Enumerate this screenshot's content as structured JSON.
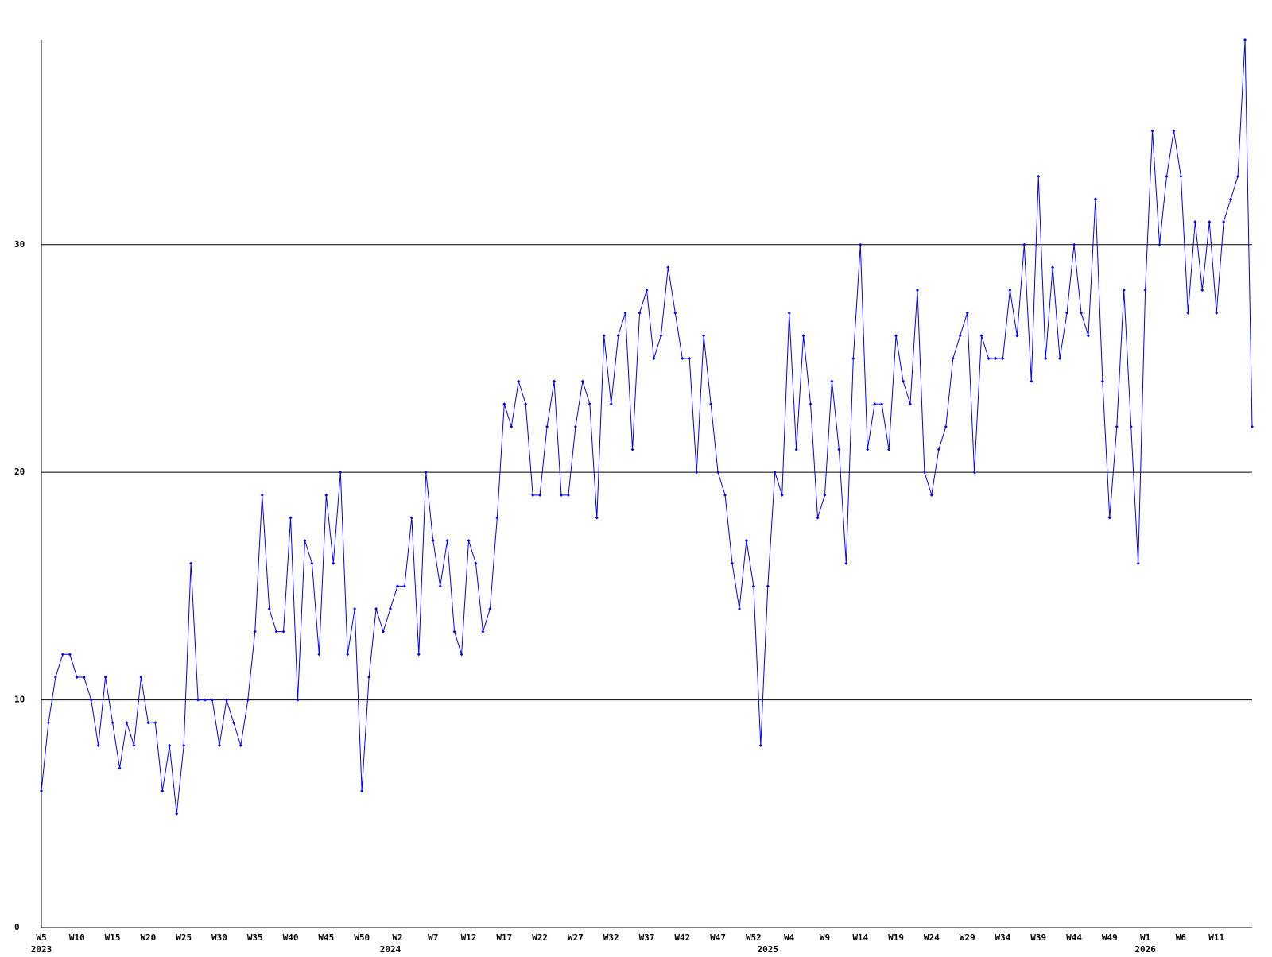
{
  "chart_data": {
    "type": "line",
    "color": "#0000ff",
    "grid": true,
    "ylim": [
      0,
      39
    ],
    "yticks": [
      0,
      10,
      20,
      30
    ],
    "categories": [
      "W5",
      null,
      null,
      null,
      null,
      "W10",
      null,
      null,
      null,
      null,
      "W15",
      null,
      null,
      null,
      null,
      "W20",
      null,
      null,
      null,
      null,
      "W25",
      null,
      null,
      null,
      null,
      "W30",
      null,
      null,
      null,
      null,
      "W35",
      null,
      null,
      null,
      null,
      "W40",
      null,
      null,
      null,
      null,
      "W45",
      null,
      null,
      null,
      null,
      "W50",
      null,
      null,
      null,
      null,
      "W2",
      null,
      null,
      null,
      null,
      "W7",
      null,
      null,
      null,
      null,
      "W12",
      null,
      null,
      null,
      null,
      "W17",
      null,
      null,
      null,
      null,
      "W22",
      null,
      null,
      null,
      null,
      "W27",
      null,
      null,
      null,
      null,
      "W32",
      null,
      null,
      null,
      null,
      "W37",
      null,
      null,
      null,
      null,
      "W42",
      null,
      null,
      null,
      null,
      "W47",
      null,
      null,
      null,
      null,
      "W52",
      null,
      null,
      null,
      null,
      "W4",
      null,
      null,
      null,
      null,
      "W9",
      null,
      null,
      null,
      null,
      "W14",
      null,
      null,
      null,
      null,
      "W19",
      null,
      null,
      null,
      null,
      "W24",
      null,
      null,
      null,
      null,
      "W29",
      null,
      null,
      null,
      null,
      "W34",
      null,
      null,
      null,
      null,
      "W39",
      null,
      null,
      null,
      null,
      "W44",
      null,
      null,
      null,
      null,
      "W49",
      null,
      null,
      null,
      null,
      "W1",
      null,
      null,
      null,
      null,
      "W6",
      null,
      null,
      null,
      null,
      "W11",
      null,
      null,
      null,
      null,
      null
    ],
    "year_labels": [
      "2023",
      null,
      null,
      null,
      null,
      null,
      null,
      null,
      null,
      null,
      null,
      null,
      null,
      null,
      null,
      null,
      null,
      null,
      null,
      null,
      null,
      null,
      null,
      null,
      null,
      null,
      null,
      null,
      null,
      null,
      null,
      null,
      null,
      null,
      null,
      null,
      null,
      null,
      null,
      null,
      null,
      null,
      null,
      null,
      null,
      null,
      null,
      null,
      null,
      "2024",
      null,
      null,
      null,
      null,
      null,
      null,
      null,
      null,
      null,
      null,
      null,
      null,
      null,
      null,
      null,
      null,
      null,
      null,
      null,
      null,
      null,
      null,
      null,
      null,
      null,
      null,
      null,
      null,
      null,
      null,
      null,
      null,
      null,
      null,
      null,
      null,
      null,
      null,
      null,
      null,
      null,
      null,
      null,
      null,
      null,
      null,
      null,
      null,
      null,
      null,
      null,
      null,
      "2025",
      null,
      null,
      null,
      null,
      null,
      null,
      null,
      null,
      null,
      null,
      null,
      null,
      null,
      null,
      null,
      null,
      null,
      null,
      null,
      null,
      null,
      null,
      null,
      null,
      null,
      null,
      null,
      null,
      null,
      null,
      null,
      null,
      null,
      null,
      null,
      null,
      null,
      null,
      null,
      null,
      null,
      null,
      null,
      null,
      null,
      null,
      null,
      null,
      null,
      null,
      null,
      null,
      "2026",
      null,
      null,
      null,
      null,
      null,
      null,
      null,
      null,
      null,
      null,
      null,
      null,
      null,
      null,
      null
    ],
    "values": [
      6,
      9,
      11,
      12,
      12,
      11,
      11,
      10,
      8,
      11,
      9,
      7,
      9,
      8,
      11,
      9,
      9,
      6,
      8,
      5,
      8,
      16,
      10,
      10,
      10,
      8,
      10,
      9,
      8,
      10,
      13,
      19,
      14,
      13,
      13,
      18,
      10,
      17,
      16,
      12,
      19,
      16,
      20,
      12,
      14,
      6,
      11,
      14,
      13,
      14,
      15,
      15,
      18,
      12,
      20,
      17,
      15,
      17,
      13,
      12,
      17,
      16,
      13,
      14,
      18,
      23,
      22,
      24,
      23,
      19,
      19,
      22,
      24,
      19,
      19,
      22,
      24,
      23,
      18,
      26,
      23,
      26,
      27,
      21,
      27,
      28,
      25,
      26,
      29,
      27,
      25,
      25,
      20,
      26,
      23,
      20,
      19,
      16,
      14,
      17,
      15,
      8,
      15,
      20,
      19,
      27,
      21,
      26,
      23,
      18,
      19,
      24,
      21,
      16,
      25,
      30,
      21,
      23,
      23,
      21,
      26,
      24,
      23,
      28,
      20,
      19,
      21,
      22,
      25,
      26,
      27,
      20,
      26,
      25,
      25,
      25,
      28,
      26,
      30,
      24,
      33,
      25,
      29,
      25,
      27,
      30,
      27,
      26,
      32,
      24,
      18,
      22,
      28,
      22,
      16,
      28,
      35,
      30,
      33,
      35,
      33,
      27,
      31,
      28,
      31,
      27,
      31,
      32,
      33,
      39,
      22
    ]
  }
}
